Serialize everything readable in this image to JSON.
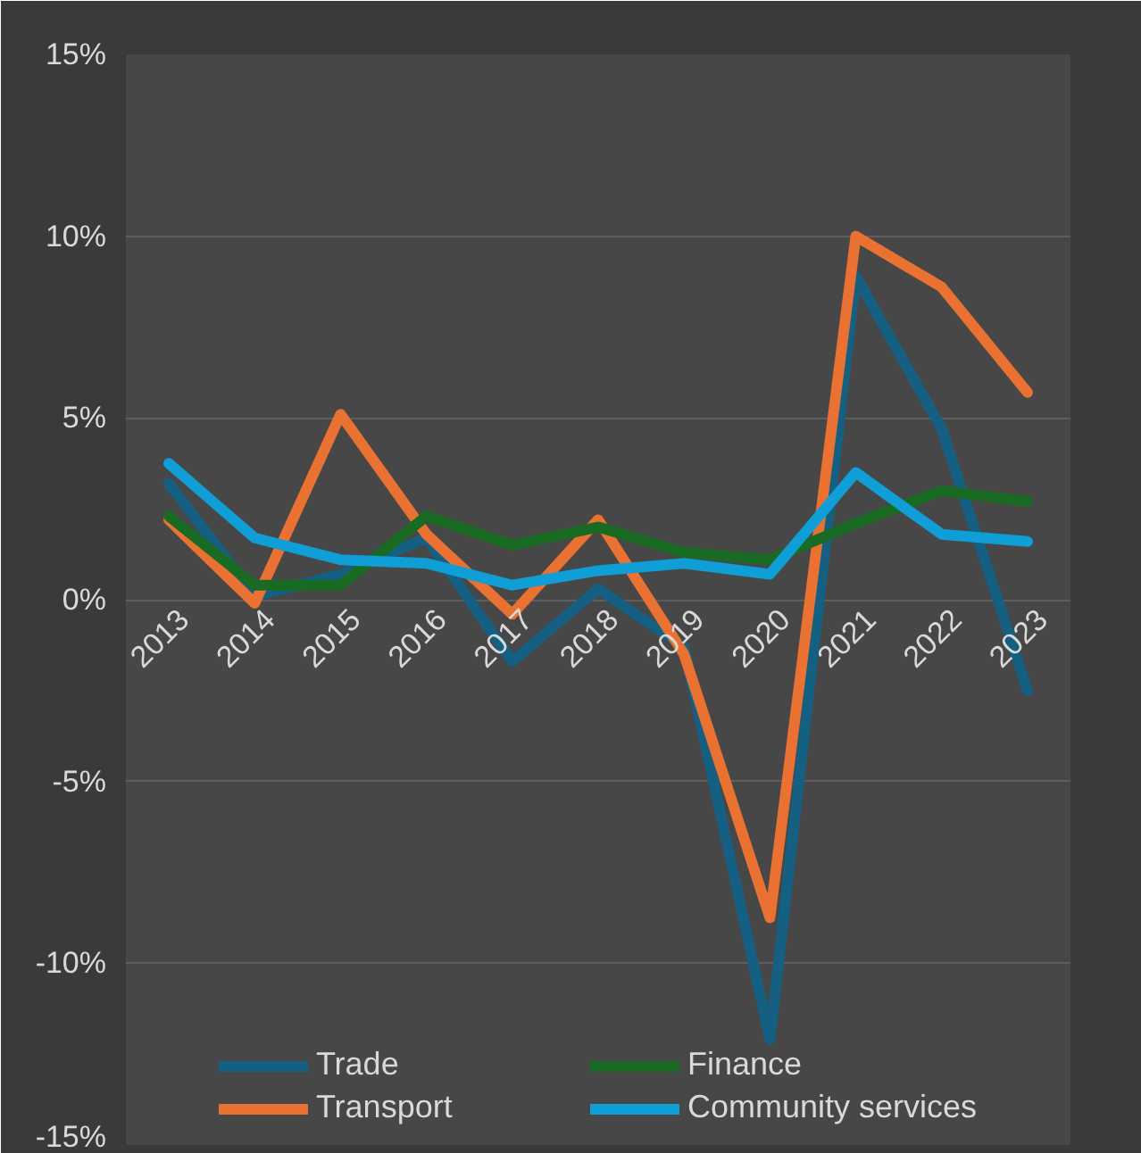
{
  "chart_data": {
    "type": "line",
    "categories": [
      "2013",
      "2014",
      "2015",
      "2016",
      "2017",
      "2018",
      "2019",
      "2020",
      "2021",
      "2022",
      "2023"
    ],
    "series": [
      {
        "name": "Trade",
        "color": "#156082",
        "values": [
          3.2,
          0.1,
          0.7,
          1.7,
          -1.7,
          0.3,
          -1.3,
          -12.1,
          8.9,
          4.7,
          -2.5
        ]
      },
      {
        "name": "Transport",
        "color": "#e97132",
        "values": [
          2.2,
          -0.1,
          5.1,
          1.8,
          -0.4,
          2.2,
          -1.5,
          -8.75,
          10.0,
          8.6,
          5.7
        ]
      },
      {
        "name": "Finance",
        "color": "#196b24",
        "values": [
          2.3,
          0.4,
          0.4,
          2.3,
          1.5,
          2.0,
          1.3,
          1.1,
          2.1,
          3.0,
          2.7
        ]
      },
      {
        "name": "Community services",
        "color": "#0f9ed5",
        "values": [
          3.75,
          1.7,
          1.1,
          1.0,
          0.4,
          0.8,
          1.0,
          0.7,
          3.5,
          1.8,
          1.6
        ]
      }
    ],
    "ylim": [
      -15,
      15
    ],
    "yticks": [
      {
        "value": -15,
        "label": "-15%"
      },
      {
        "value": -10,
        "label": "-10%"
      },
      {
        "value": -5,
        "label": "-5%"
      },
      {
        "value": 0,
        "label": "0%"
      },
      {
        "value": 5,
        "label": "5%"
      },
      {
        "value": 10,
        "label": "10%"
      },
      {
        "value": 15,
        "label": "15%"
      }
    ],
    "grid": "y",
    "legend": "bottom",
    "marker": "none",
    "line_style": "solid"
  }
}
